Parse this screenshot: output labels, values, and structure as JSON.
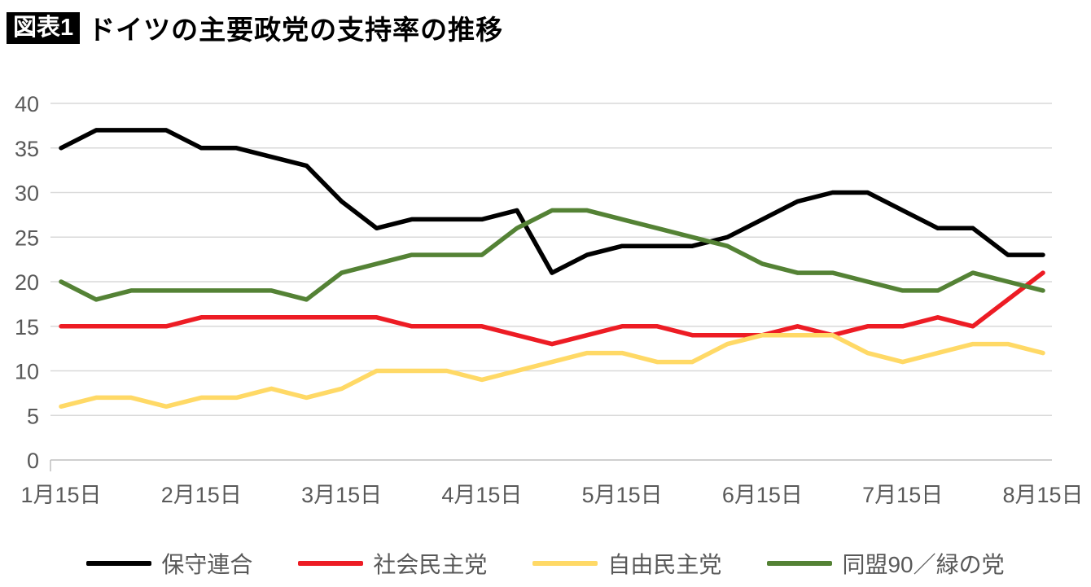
{
  "title": {
    "badge": "図表1",
    "text": "ドイツの主要政党の支持率の推移"
  },
  "colors": {
    "axis_text": "#595959",
    "gridline": "#d9d9d9",
    "axis_line": "#bfbfbf"
  },
  "chart_data": {
    "type": "line",
    "title": "ドイツの主要政党の支持率の推移",
    "xlabel": "",
    "ylabel": "",
    "ylim": [
      0,
      40
    ],
    "y_ticks": [
      0,
      5,
      10,
      15,
      20,
      25,
      30,
      35,
      40
    ],
    "grid": "horizontal",
    "legend_position": "bottom",
    "x_tick_labels": [
      "1月15日",
      "2月15日",
      "3月15日",
      "4月15日",
      "5月15日",
      "6月15日",
      "7月15日",
      "8月15日"
    ],
    "x_tick_positions": [
      0,
      4,
      8,
      12,
      16,
      20,
      24,
      28
    ],
    "series": [
      {
        "name": "保守連合",
        "color": "#000000",
        "values": [
          35,
          37,
          37,
          37,
          35,
          35,
          34,
          33,
          29,
          26,
          27,
          27,
          27,
          28,
          21,
          23,
          24,
          24,
          24,
          25,
          27,
          29,
          30,
          30,
          28,
          26,
          26,
          23,
          23
        ]
      },
      {
        "name": "社会民主党",
        "color": "#ed1c24",
        "values": [
          15,
          15,
          15,
          15,
          16,
          16,
          16,
          16,
          16,
          16,
          15,
          15,
          15,
          14,
          13,
          14,
          15,
          15,
          14,
          14,
          14,
          15,
          14,
          15,
          15,
          16,
          15,
          18,
          21
        ]
      },
      {
        "name": "自由民主党",
        "color": "#ffd966",
        "values": [
          6,
          7,
          7,
          6,
          7,
          7,
          8,
          7,
          8,
          10,
          10,
          10,
          9,
          10,
          11,
          12,
          12,
          11,
          11,
          13,
          14,
          14,
          14,
          12,
          11,
          12,
          13,
          13,
          12
        ]
      },
      {
        "name": "同盟90／緑の党",
        "color": "#548235",
        "values": [
          20,
          18,
          19,
          19,
          19,
          19,
          19,
          18,
          21,
          22,
          23,
          23,
          23,
          26,
          28,
          28,
          27,
          26,
          25,
          24,
          22,
          21,
          21,
          20,
          19,
          19,
          21,
          20,
          19
        ]
      }
    ]
  }
}
